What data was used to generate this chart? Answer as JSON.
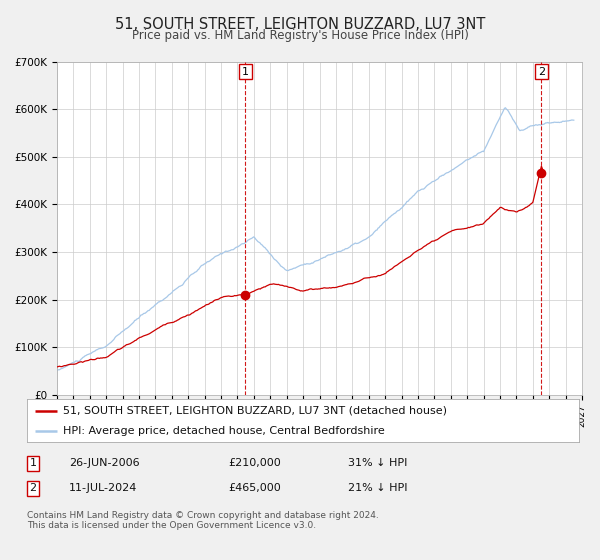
{
  "title": "51, SOUTH STREET, LEIGHTON BUZZARD, LU7 3NT",
  "subtitle": "Price paid vs. HM Land Registry's House Price Index (HPI)",
  "ylim": [
    0,
    700000
  ],
  "xlim_start": 1995.0,
  "xlim_end": 2027.0,
  "yticks": [
    0,
    100000,
    200000,
    300000,
    400000,
    500000,
    600000,
    700000
  ],
  "ytick_labels": [
    "£0",
    "£100K",
    "£200K",
    "£300K",
    "£400K",
    "£500K",
    "£600K",
    "£700K"
  ],
  "background_color": "#f0f0f0",
  "plot_background": "#ffffff",
  "grid_color": "#cccccc",
  "hpi_color": "#a8c8e8",
  "price_color": "#cc0000",
  "marker_color": "#cc0000",
  "sale1_x": 2006.486,
  "sale1_y": 210000,
  "sale2_x": 2024.528,
  "sale2_y": 465000,
  "legend_label1": "51, SOUTH STREET, LEIGHTON BUZZARD, LU7 3NT (detached house)",
  "legend_label2": "HPI: Average price, detached house, Central Bedfordshire",
  "table_row1_num": "1",
  "table_row1_date": "26-JUN-2006",
  "table_row1_price": "£210,000",
  "table_row1_hpi": "31% ↓ HPI",
  "table_row2_num": "2",
  "table_row2_date": "11-JUL-2024",
  "table_row2_price": "£465,000",
  "table_row2_hpi": "21% ↓ HPI",
  "footer_text": "Contains HM Land Registry data © Crown copyright and database right 2024.\nThis data is licensed under the Open Government Licence v3.0.",
  "title_fontsize": 10.5,
  "subtitle_fontsize": 8.5,
  "tick_fontsize": 7.5,
  "legend_fontsize": 8,
  "table_fontsize": 8,
  "footer_fontsize": 6.5
}
